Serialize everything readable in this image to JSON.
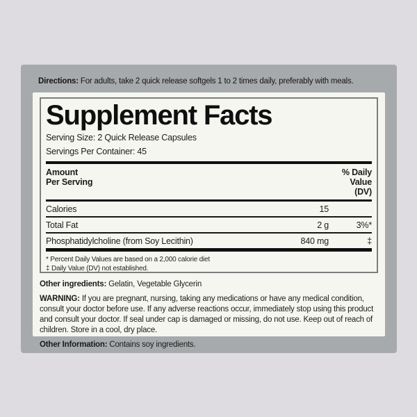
{
  "colors": {
    "page_background": "#dedce0",
    "label_background": "#a7aaac",
    "panel_background": "#f6f6f1",
    "text": "#1b1b1b"
  },
  "directions": {
    "label": "Directions:",
    "text": "For adults, take 2 quick release softgels 1 to 2 times daily, preferably with meals."
  },
  "facts": {
    "title": "Supplement Facts",
    "serving_size": "Serving Size: 2 Quick Release Capsules",
    "servings_per_container": "Servings Per Container: 45",
    "header": {
      "amount_line1": "Amount",
      "amount_line2": "Per Serving",
      "dv_line1": "% Daily",
      "dv_line2": "Value",
      "dv_line3": "(DV)"
    },
    "rows": [
      {
        "name": "Calories",
        "amount": "15",
        "dv": ""
      },
      {
        "name": "Total Fat",
        "amount": "2 g",
        "dv": "3%*"
      },
      {
        "name": "Phosphatidylcholine (from Soy Lecithin)",
        "amount": "840 mg",
        "dv": "‡"
      }
    ],
    "footnote1": "* Percent Daily Values are based on a 2,000 calorie diet",
    "footnote2": "‡ Daily Value (DV) not established."
  },
  "other_ingredients": {
    "label": "Other ingredients:",
    "text": "Gelatin, Vegetable Glycerin"
  },
  "warning": {
    "label": "WARNING:",
    "text": "If you are pregnant, nursing, taking any medications or have any medical condition, consult your doctor before use. If any adverse reactions occur, immediately stop using this product and consult your doctor. If seal under cap is damaged or missing, do not use. Keep out of reach of children. Store in a cool, dry place."
  },
  "other_information": {
    "label": "Other Information:",
    "text": "Contains soy ingredients."
  }
}
